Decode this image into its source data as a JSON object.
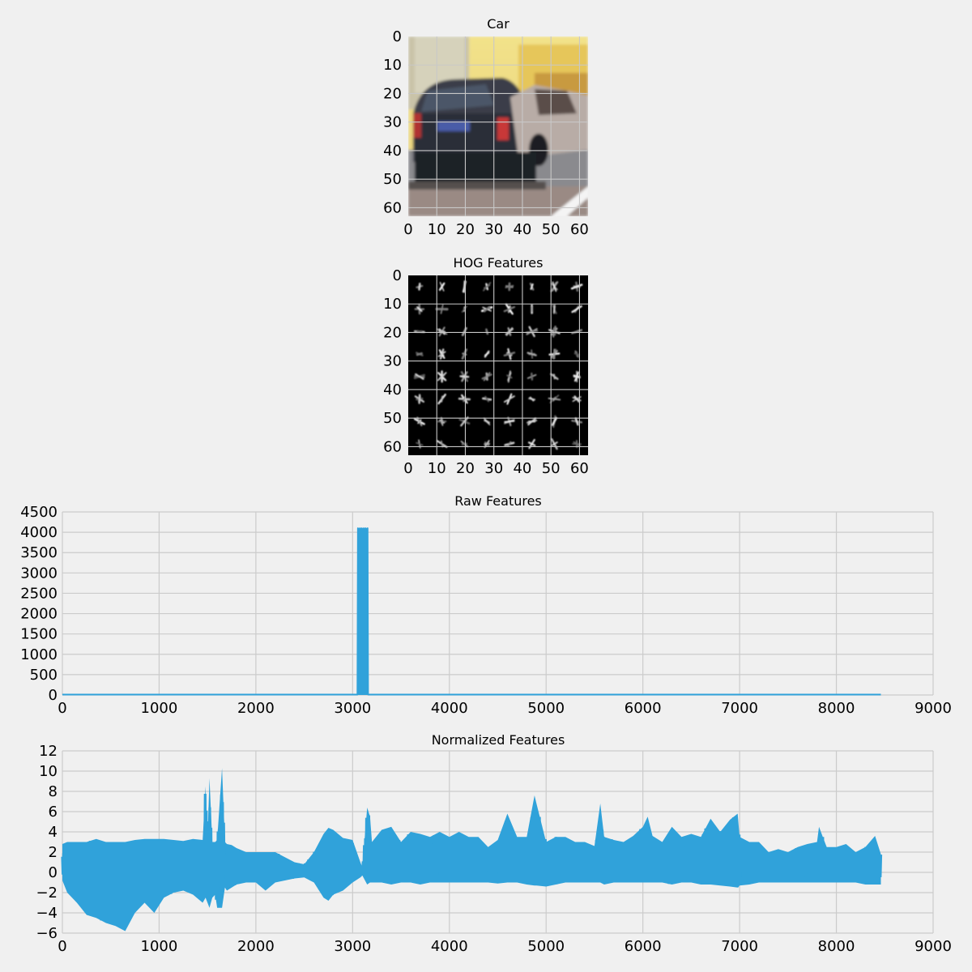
{
  "chart_data": [
    {
      "type": "image",
      "title": "Car",
      "xticks": [
        "0",
        "10",
        "20",
        "30",
        "40",
        "50",
        "60"
      ],
      "yticks": [
        "0",
        "10",
        "20",
        "30",
        "40",
        "50",
        "60"
      ],
      "xlim": [
        0,
        63
      ],
      "ylim": [
        0,
        63
      ],
      "grid": true
    },
    {
      "type": "image",
      "title": "HOG Features",
      "xticks": [
        "0",
        "10",
        "20",
        "30",
        "40",
        "50",
        "60"
      ],
      "yticks": [
        "0",
        "10",
        "20",
        "30",
        "40",
        "50",
        "60"
      ],
      "xlim": [
        0,
        63
      ],
      "ylim": [
        0,
        63
      ],
      "grid": true
    },
    {
      "type": "line",
      "title": "Raw Features",
      "xlim": [
        0,
        9000
      ],
      "ylim": [
        0,
        4500
      ],
      "xticks": [
        "0",
        "1000",
        "2000",
        "3000",
        "4000",
        "5000",
        "6000",
        "7000",
        "8000",
        "9000"
      ],
      "yticks": [
        "0",
        "500",
        "1000",
        "1500",
        "2000",
        "2500",
        "3000",
        "3500",
        "4000",
        "4500"
      ],
      "grid": true,
      "color": "#30a2da",
      "series": [
        {
          "x": [
            0,
            3050,
            3055,
            3060,
            3065,
            3070,
            3075,
            3080,
            3085,
            3090,
            3095,
            3100,
            3105,
            3110,
            3115,
            3120,
            3125,
            3130,
            3135,
            3140,
            3145,
            3150,
            3155,
            3160,
            8460
          ],
          "values": [
            10,
            10,
            4100,
            40,
            4080,
            60,
            4100,
            20,
            4090,
            50,
            4100,
            30,
            4080,
            70,
            4100,
            20,
            4090,
            40,
            4100,
            60,
            4080,
            30,
            4100,
            10,
            10
          ]
        }
      ]
    },
    {
      "type": "line",
      "title": "Normalized Features",
      "xlim": [
        0,
        9000
      ],
      "ylim": [
        -6,
        12
      ],
      "xticks": [
        "0",
        "1000",
        "2000",
        "3000",
        "4000",
        "5000",
        "6000",
        "7000",
        "8000",
        "9000"
      ],
      "yticks": [
        "−6",
        "−4",
        "−2",
        "0",
        "2",
        "4",
        "6",
        "8",
        "10",
        "12"
      ],
      "grid": true,
      "color": "#30a2da",
      "envelope": {
        "x": [
          0,
          50,
          150,
          250,
          350,
          450,
          550,
          650,
          750,
          850,
          950,
          1050,
          1150,
          1250,
          1350,
          1450,
          1480,
          1500,
          1520,
          1550,
          1580,
          1600,
          1650,
          1680,
          1700,
          1750,
          1800,
          1900,
          2000,
          2100,
          2200,
          2300,
          2400,
          2500,
          2600,
          2700,
          2750,
          2800,
          2900,
          3000,
          3080,
          3100,
          3150,
          3180,
          3200,
          3300,
          3400,
          3500,
          3600,
          3700,
          3800,
          3900,
          4000,
          4100,
          4200,
          4300,
          4400,
          4500,
          4600,
          4700,
          4800,
          4880,
          4900,
          5000,
          5100,
          5200,
          5300,
          5400,
          5500,
          5560,
          5600,
          5700,
          5800,
          5900,
          6000,
          6050,
          6100,
          6200,
          6300,
          6400,
          6500,
          6600,
          6700,
          6800,
          6900,
          6980,
          7000,
          7100,
          7200,
          7300,
          7400,
          7500,
          7600,
          7700,
          7800,
          7820,
          7900,
          8000,
          8100,
          8200,
          8300,
          8400,
          8460
        ],
        "upper": [
          2.8,
          3.0,
          3.0,
          3.0,
          3.3,
          3.0,
          3.0,
          3.0,
          3.2,
          3.3,
          3.3,
          3.3,
          3.2,
          3.1,
          3.3,
          3.2,
          8.5,
          3.0,
          9.3,
          3.0,
          3.0,
          3.2,
          10.3,
          3.0,
          2.8,
          2.7,
          2.4,
          2.0,
          2.0,
          2.0,
          2.0,
          1.5,
          1.0,
          0.8,
          2.0,
          3.8,
          4.4,
          4.2,
          3.4,
          3.2,
          1.0,
          0.5,
          6.4,
          5.5,
          3.0,
          4.2,
          4.5,
          3.0,
          4.0,
          3.8,
          3.5,
          4.0,
          3.5,
          4.0,
          3.5,
          3.5,
          2.5,
          3.2,
          5.8,
          3.5,
          3.5,
          7.6,
          6.8,
          3.0,
          3.5,
          3.5,
          3.0,
          3.0,
          2.6,
          6.8,
          3.5,
          3.2,
          3.0,
          3.6,
          4.5,
          5.5,
          3.6,
          3.0,
          4.5,
          3.5,
          3.8,
          3.5,
          5.3,
          4.0,
          5.2,
          5.8,
          3.5,
          3.0,
          3.0,
          2.0,
          2.3,
          2.0,
          2.5,
          2.8,
          3.0,
          4.5,
          2.5,
          2.5,
          2.8,
          2.0,
          2.5,
          3.6,
          1.8
        ],
        "lower": [
          -0.8,
          -2.0,
          -3.0,
          -4.2,
          -4.5,
          -5.0,
          -5.3,
          -5.8,
          -4.0,
          -3.0,
          -4.0,
          -2.5,
          -2.0,
          -1.8,
          -2.2,
          -3.0,
          -2.5,
          -3.0,
          -3.5,
          -2.5,
          -2.2,
          -3.5,
          -3.5,
          -1.5,
          -1.8,
          -1.5,
          -1.2,
          -1.0,
          -1.0,
          -1.8,
          -1.0,
          -0.8,
          -0.6,
          -0.5,
          -1.0,
          -2.5,
          -2.8,
          -2.2,
          -1.8,
          -1.0,
          -0.5,
          -0.3,
          -1.2,
          -1.0,
          -1.0,
          -1.0,
          -1.2,
          -1.0,
          -1.0,
          -1.2,
          -1.0,
          -1.0,
          -1.0,
          -1.0,
          -1.0,
          -1.0,
          -1.0,
          -1.1,
          -1.0,
          -1.0,
          -1.2,
          -1.3,
          -1.3,
          -1.4,
          -1.2,
          -1.0,
          -1.0,
          -1.0,
          -1.0,
          -1.0,
          -1.2,
          -1.0,
          -1.0,
          -1.0,
          -1.0,
          -1.0,
          -1.0,
          -1.0,
          -1.2,
          -1.0,
          -1.0,
          -1.2,
          -1.2,
          -1.3,
          -1.4,
          -1.5,
          -1.3,
          -1.2,
          -1.0,
          -1.0,
          -1.0,
          -1.0,
          -1.0,
          -1.0,
          -1.0,
          -1.0,
          -1.0,
          -1.0,
          -1.0,
          -1.0,
          -1.2,
          -1.2,
          -1.2
        ]
      }
    }
  ]
}
